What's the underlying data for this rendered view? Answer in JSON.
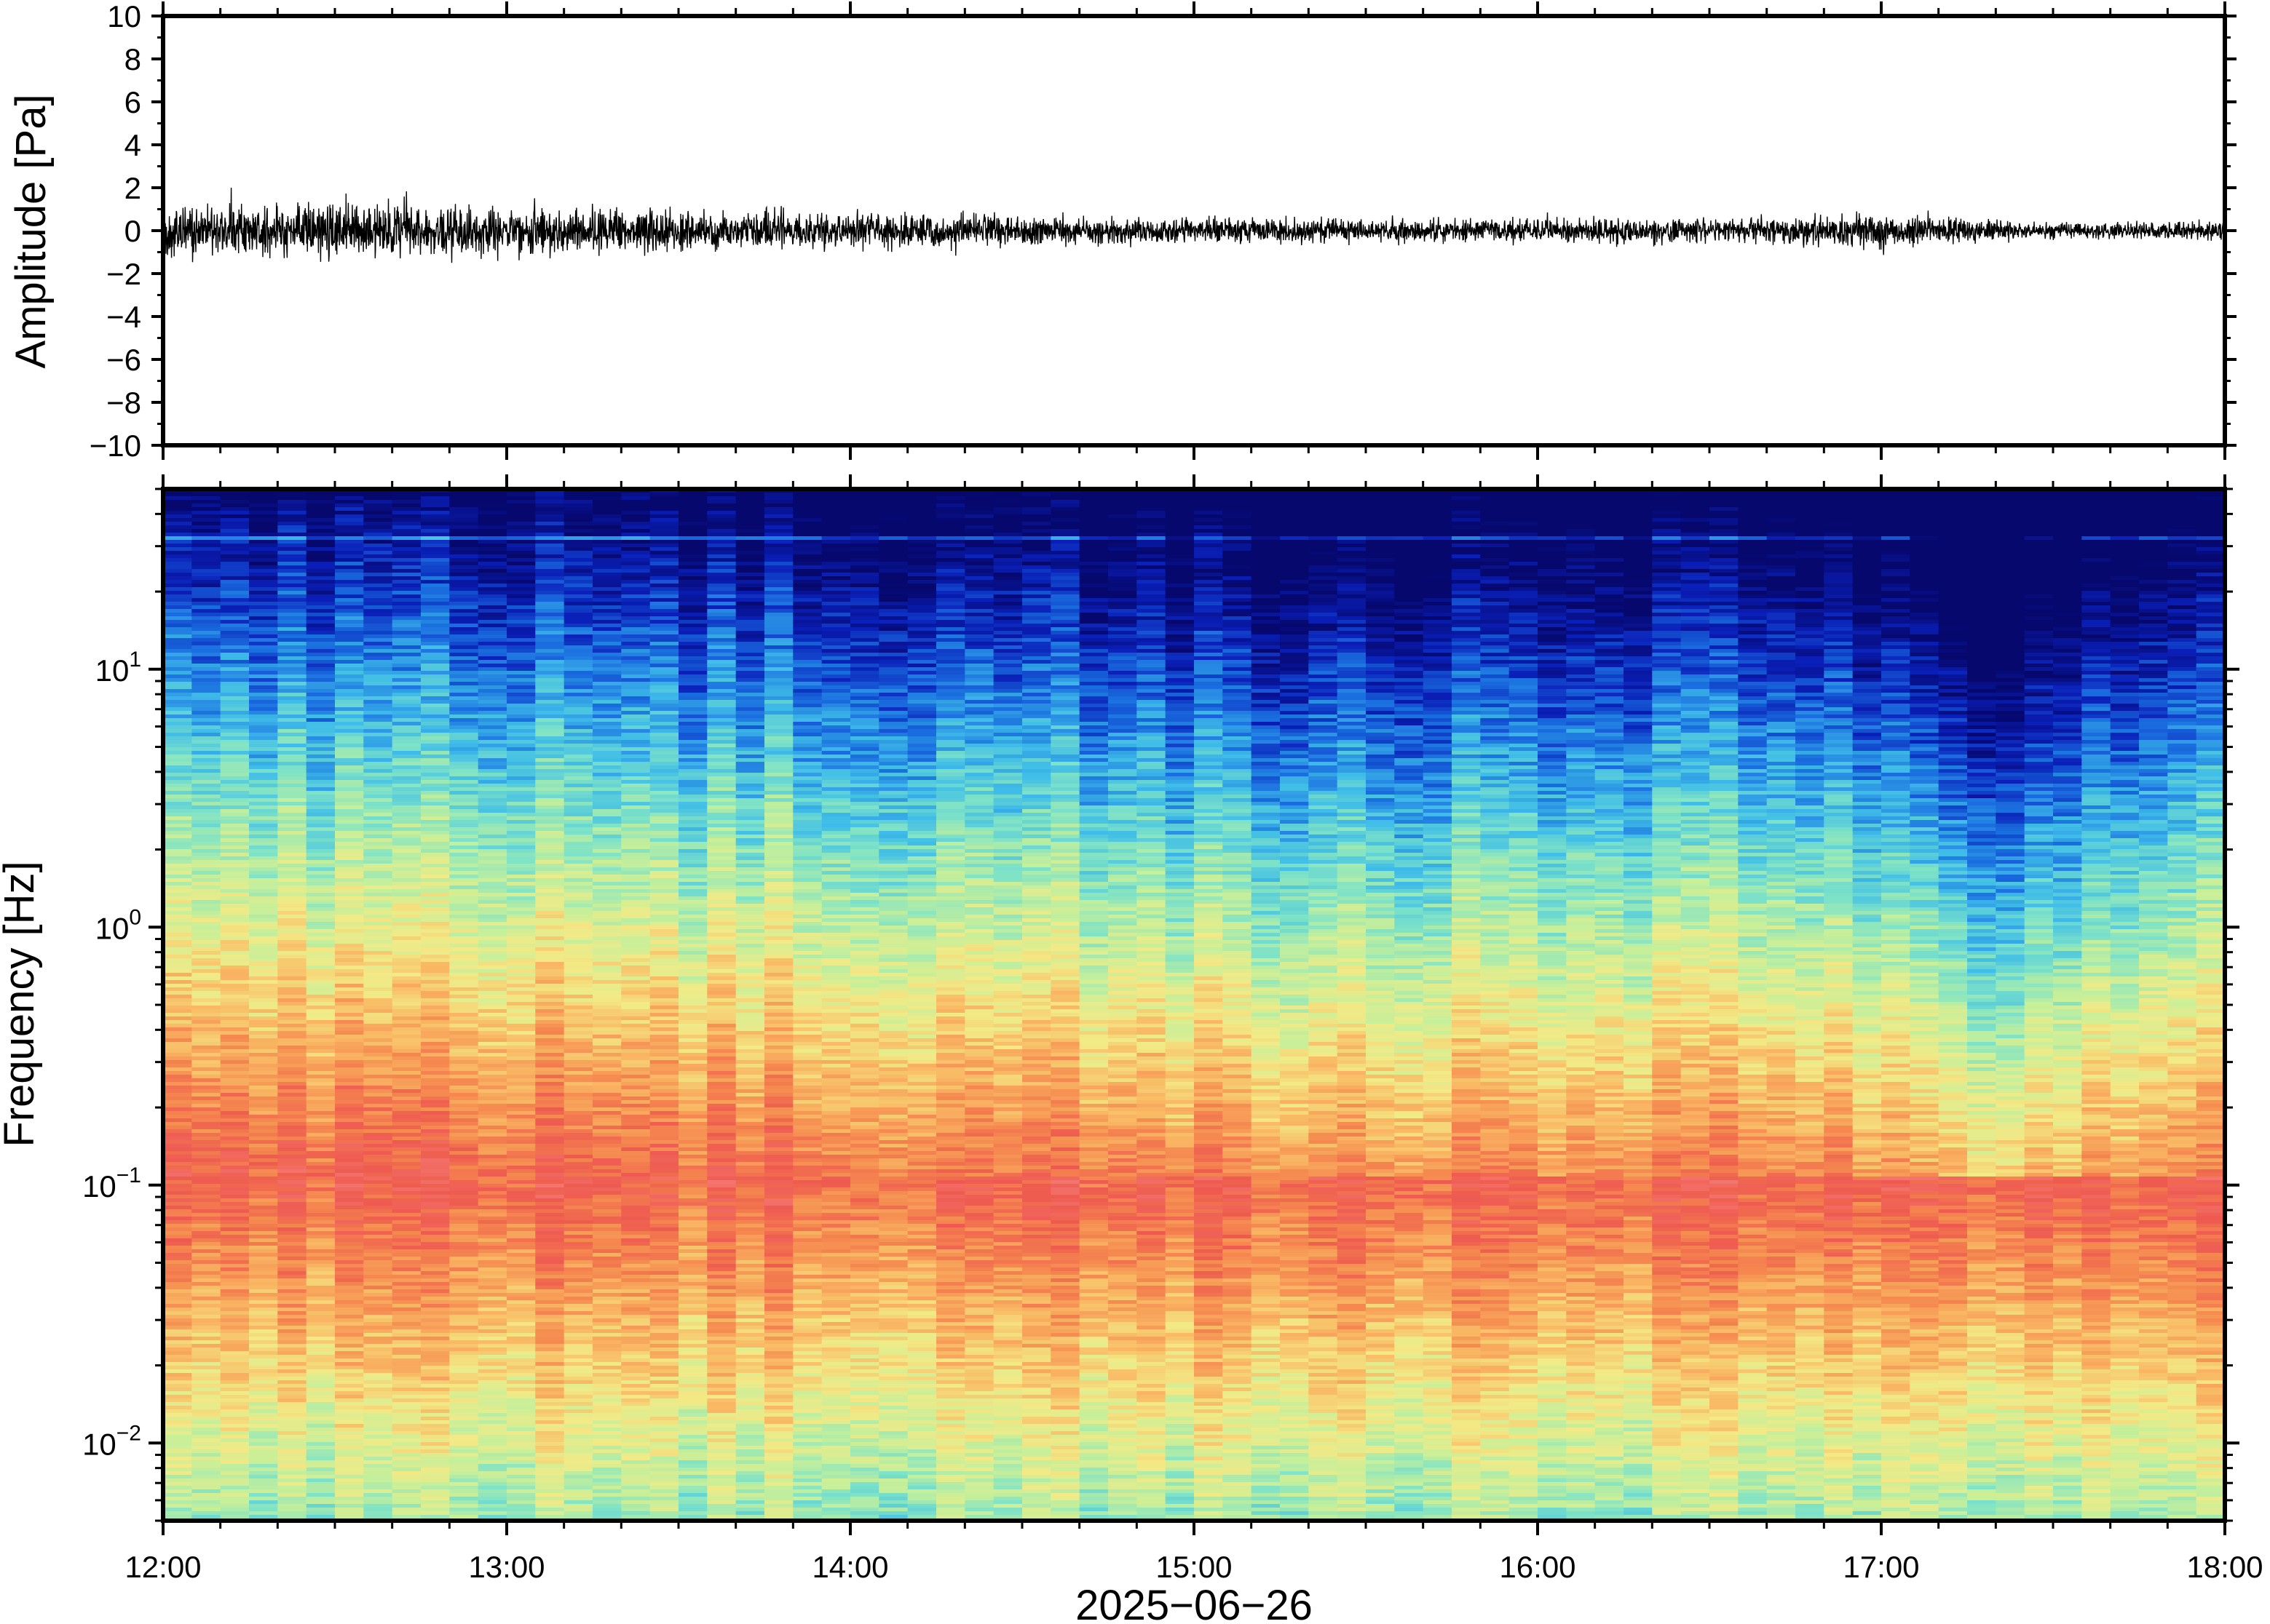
{
  "chart_data": [
    {
      "type": "line",
      "title": "",
      "xlabel": "",
      "ylabel": "Amplitude [Pa]",
      "x_range": [
        "12:00",
        "18:00"
      ],
      "ylim": [
        -10,
        10
      ],
      "y_ticks": [
        10,
        8,
        6,
        4,
        2,
        0,
        -2,
        -4,
        -6,
        -8,
        -10
      ],
      "y_tick_labels": [
        "10",
        "8",
        "6",
        "4",
        "2",
        "0",
        "−2",
        "−4",
        "−6",
        "−8",
        "−10"
      ],
      "grid": false,
      "series": [
        {
          "color": "#000000",
          "envelope_time": [
            "12:00",
            "12:30",
            "13:00",
            "13:30",
            "14:00",
            "14:30",
            "15:00",
            "15:30",
            "16:00",
            "16:30",
            "17:00",
            "17:30",
            "18:00"
          ],
          "envelope_amplitude_pa": [
            1.3,
            1.4,
            1.2,
            1.1,
            0.9,
            0.8,
            0.7,
            0.6,
            0.7,
            0.6,
            0.9,
            0.4,
            0.5
          ],
          "peak_max_pa": 2.0,
          "peak_min_pa": -2.4
        }
      ]
    },
    {
      "type": "heatmap",
      "title": "",
      "xlabel": "2025−06−26",
      "ylabel": "Frequency [Hz]",
      "x_ticks": [
        "12:00",
        "13:00",
        "14:00",
        "15:00",
        "16:00",
        "17:00",
        "18:00"
      ],
      "x_range": [
        "12:00",
        "18:00"
      ],
      "y_scale": "log",
      "ylim": [
        0.005,
        50
      ],
      "y_ticks": [
        10,
        1,
        0.1,
        0.01
      ],
      "y_tick_labels": [
        {
          "base": "10",
          "exp": "1"
        },
        {
          "base": "10",
          "exp": "0"
        },
        {
          "base": "10",
          "exp": "−1"
        },
        {
          "base": "10",
          "exp": "−2"
        }
      ],
      "colormap": "rainbow (dark blue = low power, red = high power)",
      "colors": [
        "#06086e",
        "#0a1fb8",
        "#1a6fe0",
        "#3fbde8",
        "#7fe3c6",
        "#c6ef9a",
        "#f2ea86",
        "#f9b864",
        "#f5884f",
        "#ee5a4f",
        "#f4746e"
      ],
      "features": {
        "peak_power_band_hz": [
          0.04,
          0.3
        ],
        "low_power_top_hz": 20,
        "narrow_line_hz": 32
      }
    }
  ]
}
